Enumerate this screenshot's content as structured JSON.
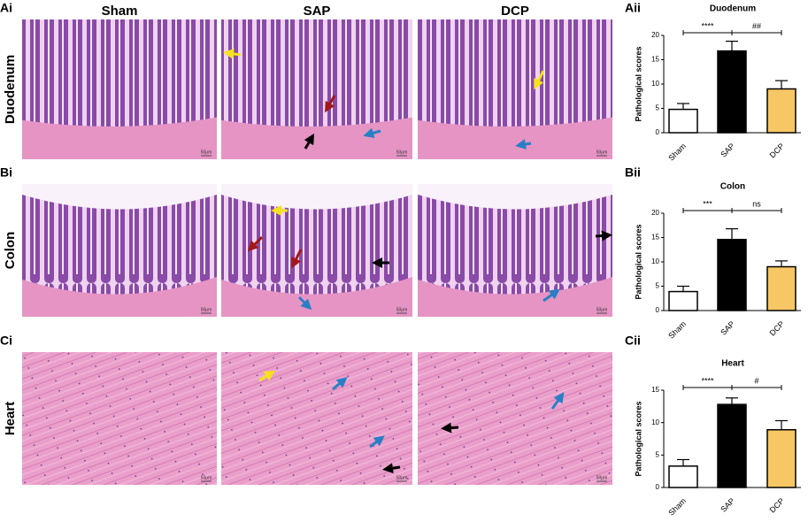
{
  "figure": {
    "panel_labels": [
      "Ai",
      "Bi",
      "Ci"
    ],
    "chart_labels": [
      "Aii",
      "Bii",
      "Cii"
    ],
    "columns": [
      "Sham",
      "SAP",
      "DCP"
    ],
    "rows": [
      "Duodenum",
      "Colon",
      "Heart"
    ],
    "scale_bar": "50μm"
  },
  "chart_data": [
    {
      "type": "bar",
      "title": "Duodenum",
      "y_label": "Pathological scores",
      "categories": [
        "Sham",
        "SAP",
        "DCP"
      ],
      "values": [
        4.8,
        16.8,
        9.0
      ],
      "errors": [
        1.2,
        2.0,
        1.7
      ],
      "colors": [
        "#ffffff",
        "#000000",
        "#f7c765"
      ],
      "annotations": [
        "****",
        "##"
      ],
      "ylim": [
        0,
        20
      ],
      "yticks": [
        0,
        5,
        10,
        15,
        20
      ]
    },
    {
      "type": "bar",
      "title": "Colon",
      "y_label": "Pathological scores",
      "categories": [
        "Sham",
        "SAP",
        "DCP"
      ],
      "values": [
        3.9,
        14.6,
        9.0
      ],
      "errors": [
        1.1,
        2.2,
        1.2
      ],
      "colors": [
        "#ffffff",
        "#000000",
        "#f7c765"
      ],
      "annotations": [
        "***",
        "ns"
      ],
      "ylim": [
        0,
        20
      ],
      "yticks": [
        0,
        5,
        10,
        15,
        20
      ]
    },
    {
      "type": "bar",
      "title": "Heart",
      "y_label": "Pathological scores",
      "categories": [
        "Sham",
        "SAP",
        "DCP"
      ],
      "values": [
        3.3,
        12.8,
        8.9
      ],
      "errors": [
        1.0,
        1.0,
        1.4
      ],
      "colors": [
        "#ffffff",
        "#000000",
        "#f7c765"
      ],
      "annotations": [
        "****",
        "#"
      ],
      "ylim": [
        0,
        15
      ],
      "yticks": [
        0,
        5,
        10,
        15
      ]
    }
  ]
}
